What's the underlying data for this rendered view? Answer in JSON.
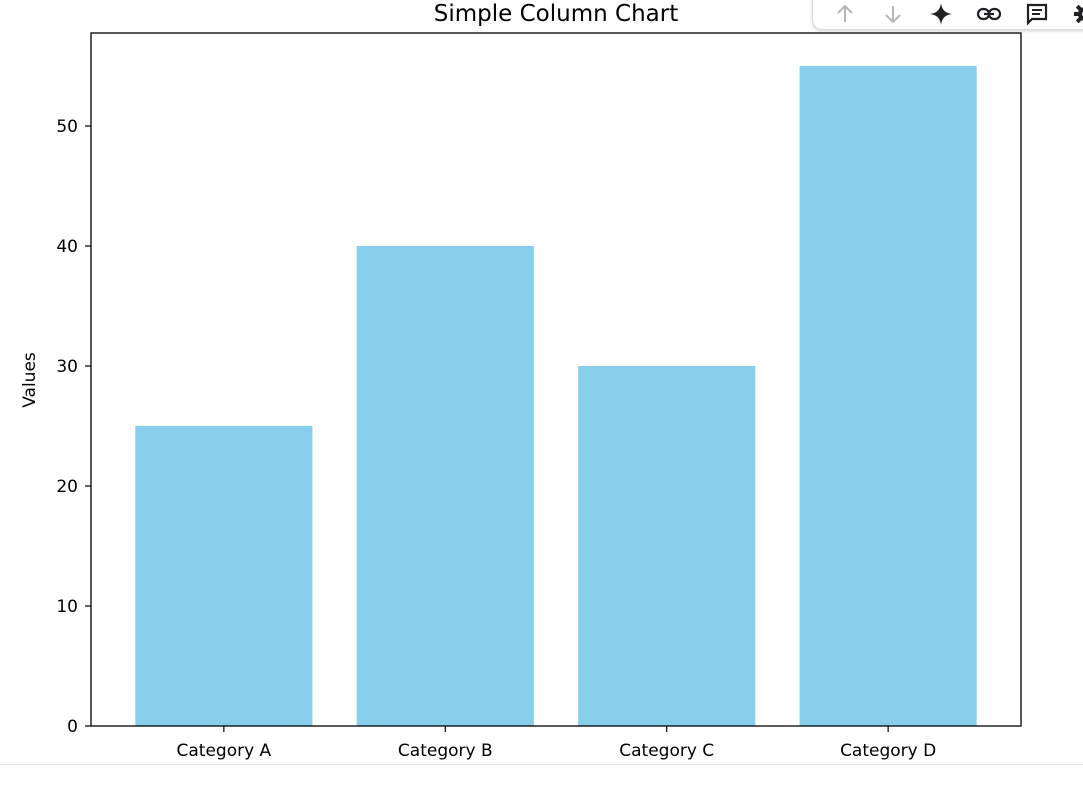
{
  "chart_data": {
    "type": "bar",
    "title": "Simple Column Chart",
    "xlabel": "",
    "ylabel": "Values",
    "categories": [
      "Category A",
      "Category B",
      "Category C",
      "Category D"
    ],
    "values": [
      25,
      40,
      30,
      55
    ],
    "ylim": [
      0,
      57.75
    ],
    "yticks": [
      0,
      10,
      20,
      30,
      40,
      50
    ],
    "ytick_labels": [
      "0",
      "10",
      "20",
      "30",
      "40",
      "50"
    ],
    "bar_color": "#87ceeb",
    "grid": false,
    "legend": "none"
  },
  "toolbar": {
    "icons": [
      "arrow-up-icon",
      "arrow-down-icon",
      "sparkle-icon",
      "link-icon",
      "comment-icon",
      "gear-icon"
    ],
    "colors": {
      "arrow_disabled": "#b6b6b6",
      "icon": "#202124"
    }
  }
}
